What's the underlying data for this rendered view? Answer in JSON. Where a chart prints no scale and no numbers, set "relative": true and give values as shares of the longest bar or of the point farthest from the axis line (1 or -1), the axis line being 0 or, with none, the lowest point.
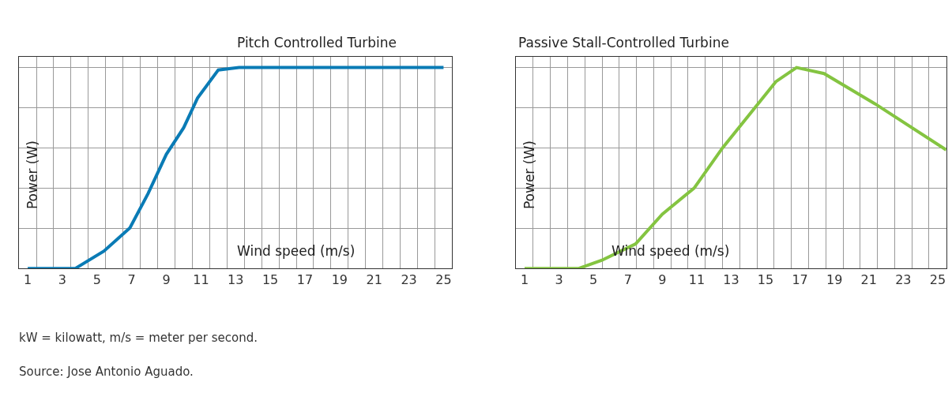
{
  "chart_data": [
    {
      "type": "line",
      "title": "Pitch Controlled Turbine",
      "xlabel": "Wind speed (m/s)",
      "ylabel": "Power (W)",
      "relative": true,
      "grid": true,
      "marker": "none",
      "line_style": "solid",
      "xlim": [
        0.5,
        25.5
      ],
      "xticks": [
        1,
        {
          "value": 1.5,
          "label": null
        },
        {
          "value": 2.5,
          "label": null
        },
        3,
        {
          "value": 3.5,
          "label": null
        },
        {
          "value": 4.5,
          "label": null
        },
        5,
        {
          "value": 5.5,
          "label": null
        },
        {
          "value": 6.5,
          "label": null
        },
        7,
        {
          "value": 7.5,
          "label": null
        },
        {
          "value": 8.5,
          "label": null
        },
        9,
        {
          "value": 9.5,
          "label": null
        },
        {
          "value": 10.5,
          "label": null
        },
        11,
        {
          "value": 11.5,
          "label": null
        },
        {
          "value": 12.5,
          "label": null
        },
        13,
        {
          "value": 13.5,
          "label": null
        },
        {
          "value": 14.5,
          "label": null
        },
        15,
        {
          "value": 15.5,
          "label": null
        },
        {
          "value": 16.5,
          "label": null
        },
        17,
        {
          "value": 17.5,
          "label": null
        },
        {
          "value": 18.5,
          "label": null
        },
        19,
        {
          "value": 19.5,
          "label": null
        },
        {
          "value": 20.5,
          "label": null
        },
        21,
        {
          "value": 21.5,
          "label": null
        },
        {
          "value": 22.5,
          "label": null
        },
        23,
        {
          "value": 23.5,
          "label": null
        },
        {
          "value": 24.5,
          "label": null
        },
        25
      ],
      "series": [
        {
          "color": "#0a7bb5",
          "x": [
            1,
            3.75,
            5.4,
            6.9,
            7.95,
            9,
            10,
            10.8,
            12,
            13.2,
            25
          ],
          "values": [
            0,
            0,
            0.086,
            0.202,
            0.373,
            0.568,
            0.7,
            0.848,
            0.988,
            1,
            1
          ]
        }
      ]
    },
    {
      "type": "line",
      "title": "Passive Stall-Controlled Turbine",
      "xlabel": "Wind speed (m/s)",
      "ylabel": "Power (W)",
      "relative": true,
      "grid": true,
      "marker": "none",
      "line_style": "solid",
      "xlim": [
        0.5,
        25.5
      ],
      "xticks": [
        1,
        {
          "value": 1.5,
          "label": null
        },
        {
          "value": 2.5,
          "label": null
        },
        3,
        {
          "value": 3.5,
          "label": null
        },
        {
          "value": 4.5,
          "label": null
        },
        5,
        {
          "value": 5.5,
          "label": null
        },
        {
          "value": 6.5,
          "label": null
        },
        7,
        {
          "value": 7.5,
          "label": null
        },
        {
          "value": 8.5,
          "label": null
        },
        9,
        {
          "value": 9.5,
          "label": null
        },
        {
          "value": 10.5,
          "label": null
        },
        11,
        {
          "value": 11.5,
          "label": null
        },
        {
          "value": 12.5,
          "label": null
        },
        13,
        {
          "value": 13.5,
          "label": null
        },
        {
          "value": 14.5,
          "label": null
        },
        15,
        {
          "value": 15.5,
          "label": null
        },
        {
          "value": 16.5,
          "label": null
        },
        17,
        {
          "value": 17.5,
          "label": null
        },
        {
          "value": 18.5,
          "label": null
        },
        19,
        {
          "value": 19.5,
          "label": null
        },
        {
          "value": 20.5,
          "label": null
        },
        21,
        {
          "value": 21.5,
          "label": null
        },
        {
          "value": 22.5,
          "label": null
        },
        23,
        {
          "value": 23.5,
          "label": null
        },
        {
          "value": 24.5,
          "label": null
        },
        25
      ],
      "series": [
        {
          "color": "#84c441",
          "x": [
            1,
            4.15,
            5.5,
            7.45,
            9,
            10.85,
            12.5,
            15.6,
            16.8,
            18.4,
            21.35,
            25.5
          ],
          "values": [
            0,
            0,
            0.041,
            0.122,
            0.27,
            0.4,
            0.6,
            0.93,
            1,
            0.97,
            0.82,
            0.59
          ]
        }
      ],
      "annotations": [
        "kW = kilowatt, m/s = meter per second.",
        "Source: Jose Antonio Aguado."
      ]
    }
  ]
}
